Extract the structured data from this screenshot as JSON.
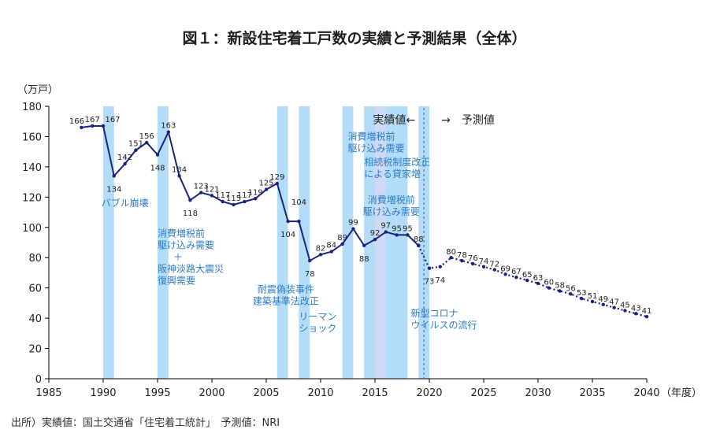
{
  "title": "図１：新設住宅着工戸数の実績と予測結果（全体）",
  "source": "出所）実績値：国土交通省「住宅着工統計」　予測値：NRI",
  "colors": {
    "line": "#1a237e",
    "band": "#b3dcf8",
    "annotation": "#2e7cc4",
    "forecast_bg": "#cdd9f7"
  },
  "chart_data": {
    "type": "line",
    "title": "図１：新設住宅着工戸数の実績と予測結果（全体）",
    "ylabel": "（万戸）",
    "xlabel": "（年度）",
    "xlim": [
      1985,
      2040
    ],
    "ylim": [
      0,
      180
    ],
    "x_ticks": [
      1985,
      1990,
      1995,
      2000,
      2005,
      2010,
      2015,
      2020,
      2025,
      2030,
      2035,
      2040
    ],
    "y_ticks": [
      0,
      20,
      40,
      60,
      80,
      100,
      120,
      140,
      160,
      180
    ],
    "grid": false,
    "divider_labels": {
      "actual": "実績値←",
      "forecast": "→　予測値"
    },
    "divider_year": 2019.5,
    "highlight_range": [
      2014,
      2016.5
    ],
    "series": [
      {
        "name": "実績値",
        "style": "solid",
        "x": [
          1988,
          1989,
          1990,
          1991,
          1992,
          1993,
          1994,
          1995,
          1996,
          1997,
          1998,
          1999,
          2000,
          2001,
          2002,
          2003,
          2004,
          2005,
          2006,
          2007,
          2008,
          2009,
          2010,
          2011,
          2012,
          2013,
          2014,
          2015,
          2016,
          2017,
          2018,
          2019
        ],
        "y": [
          166,
          167,
          167,
          134,
          142,
          151,
          156,
          148,
          163,
          134,
          118,
          123,
          121,
          117,
          115,
          117,
          119,
          125,
          129,
          104,
          104,
          78,
          82,
          84,
          89,
          99,
          88,
          92,
          97,
          95,
          95,
          88
        ]
      },
      {
        "name": "予測値",
        "style": "dotted",
        "x": [
          2019,
          2020,
          2021,
          2022,
          2023,
          2024,
          2025,
          2026,
          2027,
          2028,
          2029,
          2030,
          2031,
          2032,
          2033,
          2034,
          2035,
          2036,
          2037,
          2038,
          2039,
          2040
        ],
        "y": [
          88,
          73,
          74,
          80,
          78,
          76,
          74,
          72,
          69,
          67,
          65,
          63,
          60,
          58,
          56,
          53,
          51,
          49,
          47,
          45,
          43,
          41
        ]
      }
    ],
    "data_labels": [
      {
        "x": 1988,
        "y": 166,
        "t": "166"
      },
      {
        "x": 1989,
        "y": 167,
        "t": "167"
      },
      {
        "x": 1990,
        "y": 167,
        "t": "167"
      },
      {
        "x": 1991,
        "y": 134,
        "t": "134"
      },
      {
        "x": 1992,
        "y": 142,
        "t": "142"
      },
      {
        "x": 1993,
        "y": 151,
        "t": "151"
      },
      {
        "x": 1994,
        "y": 156,
        "t": "156"
      },
      {
        "x": 1995,
        "y": 148,
        "t": "148"
      },
      {
        "x": 1996,
        "y": 163,
        "t": "163"
      },
      {
        "x": 1997,
        "y": 134,
        "t": "134"
      },
      {
        "x": 1998,
        "y": 118,
        "t": "118"
      },
      {
        "x": 1999,
        "y": 123,
        "t": "123"
      },
      {
        "x": 2000,
        "y": 121,
        "t": "121"
      },
      {
        "x": 2001,
        "y": 117,
        "t": "117"
      },
      {
        "x": 2002,
        "y": 115,
        "t": "115"
      },
      {
        "x": 2003,
        "y": 117,
        "t": "117"
      },
      {
        "x": 2004,
        "y": 119,
        "t": "119"
      },
      {
        "x": 2005,
        "y": 125,
        "t": "125"
      },
      {
        "x": 2006,
        "y": 129,
        "t": "129"
      },
      {
        "x": 2007,
        "y": 104,
        "t": "104"
      },
      {
        "x": 2008,
        "y": 104,
        "t": "104"
      },
      {
        "x": 2009,
        "y": 78,
        "t": "78"
      },
      {
        "x": 2010,
        "y": 82,
        "t": "82"
      },
      {
        "x": 2011,
        "y": 84,
        "t": "84"
      },
      {
        "x": 2012,
        "y": 89,
        "t": "89"
      },
      {
        "x": 2013,
        "y": 99,
        "t": "99"
      },
      {
        "x": 2014,
        "y": 88,
        "t": "88"
      },
      {
        "x": 2015,
        "y": 92,
        "t": "92"
      },
      {
        "x": 2016,
        "y": 97,
        "t": "97"
      },
      {
        "x": 2017,
        "y": 95,
        "t": "95"
      },
      {
        "x": 2018,
        "y": 95,
        "t": "95"
      },
      {
        "x": 2019,
        "y": 88,
        "t": "88"
      },
      {
        "x": 2020,
        "y": 73,
        "t": "73"
      },
      {
        "x": 2021,
        "y": 74,
        "t": "74"
      },
      {
        "x": 2022,
        "y": 80,
        "t": "80"
      },
      {
        "x": 2023,
        "y": 78,
        "t": "78"
      },
      {
        "x": 2024,
        "y": 76,
        "t": "76"
      },
      {
        "x": 2025,
        "y": 74,
        "t": "74"
      },
      {
        "x": 2026,
        "y": 72,
        "t": "72"
      },
      {
        "x": 2027,
        "y": 69,
        "t": "69"
      },
      {
        "x": 2028,
        "y": 67,
        "t": "67"
      },
      {
        "x": 2029,
        "y": 65,
        "t": "65"
      },
      {
        "x": 2030,
        "y": 63,
        "t": "63"
      },
      {
        "x": 2031,
        "y": 60,
        "t": "60"
      },
      {
        "x": 2032,
        "y": 58,
        "t": "58"
      },
      {
        "x": 2033,
        "y": 56,
        "t": "56"
      },
      {
        "x": 2034,
        "y": 53,
        "t": "53"
      },
      {
        "x": 2035,
        "y": 51,
        "t": "51"
      },
      {
        "x": 2036,
        "y": 49,
        "t": "49"
      },
      {
        "x": 2037,
        "y": 47,
        "t": "47"
      },
      {
        "x": 2038,
        "y": 45,
        "t": "45"
      },
      {
        "x": 2039,
        "y": 43,
        "t": "43"
      },
      {
        "x": 2040,
        "y": 41,
        "t": "41"
      }
    ],
    "bands": [
      [
        1990,
        1991
      ],
      [
        1995,
        1996
      ],
      [
        2006,
        2007
      ],
      [
        2008,
        2009
      ],
      [
        2012,
        2013
      ],
      [
        2014,
        2015
      ],
      [
        2016,
        2017
      ],
      [
        2017,
        2018
      ],
      [
        2019,
        2020
      ]
    ],
    "annotations": [
      {
        "x": 1992,
        "y": 114,
        "lines": [
          "バブル崩壊"
        ],
        "anchor": "middle"
      },
      {
        "x": 1995,
        "y": 94,
        "lines": [
          "消費増税前",
          "駆け込み需要",
          "＋",
          "阪神淡路大震災",
          "復興需要"
        ],
        "anchor": "start"
      },
      {
        "x": 2006.8,
        "y": 57,
        "lines": [
          "耐震偽装事件",
          "建築基準法改正"
        ],
        "anchor": "middle"
      },
      {
        "x": 2008,
        "y": 39,
        "lines": [
          "リーマン",
          "ショック"
        ],
        "anchor": "start"
      },
      {
        "x": 2012.5,
        "y": 158,
        "lines": [
          "消費増税前",
          "駆け込み需要"
        ],
        "anchor": "start"
      },
      {
        "x": 2014,
        "y": 141,
        "lines": [
          "相続税制度改正",
          "による貸家増"
        ],
        "anchor": "start"
      },
      {
        "x": 2016.5,
        "y": 116,
        "lines": [
          "消費増税前",
          "駆け込み需要"
        ],
        "anchor": "middle"
      },
      {
        "x": 2018.3,
        "y": 41,
        "lines": [
          "新型コロナ",
          "ウイルスの流行"
        ],
        "anchor": "start"
      }
    ]
  }
}
